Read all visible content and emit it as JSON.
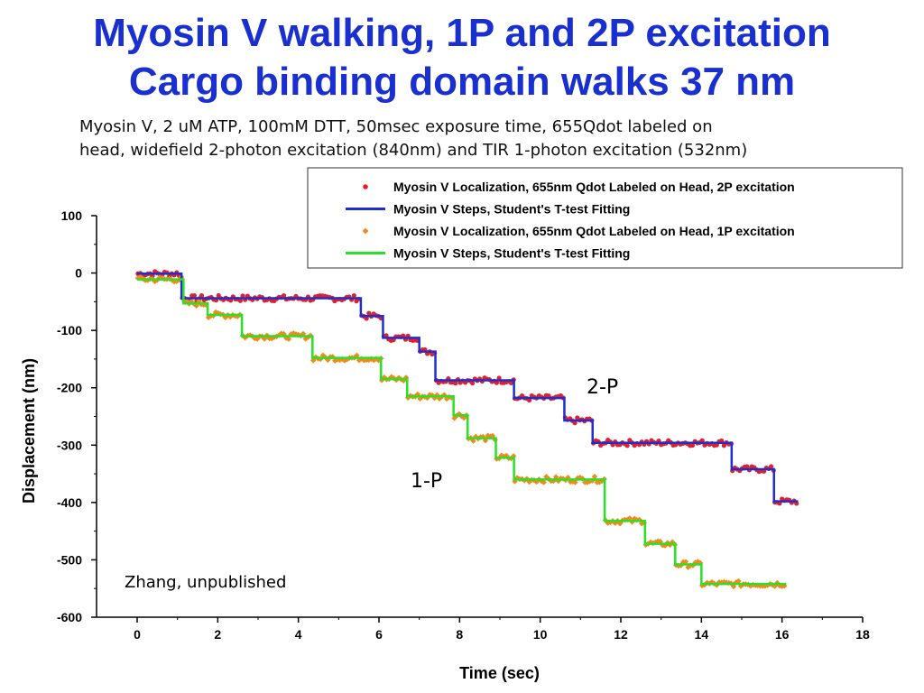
{
  "slide": {
    "title_line1": "Myosin V walking, 1P and 2P excitation",
    "title_line2": "Cargo binding domain walks 37 nm",
    "subtitle_line1": "Myosin V, 2 uM ATP, 100mM DTT, 50msec exposure time, 655Qdot labeled on",
    "subtitle_line2": "head, widefield 2-photon excitation (840nm) and TIR 1-photon excitation (532nm)",
    "title_color": "#1a2fcf"
  },
  "chart_data": {
    "type": "scatter",
    "xlabel": "Time (sec)",
    "ylabel": "Displacement (nm)",
    "xlim": [
      0,
      18
    ],
    "ylim": [
      -600,
      100
    ],
    "xticks": [
      "0",
      "2",
      "4",
      "6",
      "8",
      "10",
      "12",
      "14",
      "16",
      "18"
    ],
    "yticks": [
      "100",
      "0",
      "-100",
      "-200",
      "-300",
      "-400",
      "-500",
      "-600"
    ],
    "legend_position": "top-right",
    "annotations": [
      "2-P",
      "1-P"
    ],
    "credit": "Zhang, unpublished",
    "series": [
      {
        "name": "Myosin V Localization, 655nm Qdot Labeled on Head, 2P excitation",
        "kind": "points",
        "marker": "circle",
        "color": "#e0202a",
        "steps": [
          {
            "x0": 0.0,
            "x1": 1.1,
            "y": -1
          },
          {
            "x0": 1.1,
            "x1": 5.55,
            "y": -44
          },
          {
            "x0": 5.55,
            "x1": 6.1,
            "y": -75
          },
          {
            "x0": 6.1,
            "x1": 7.0,
            "y": -113
          },
          {
            "x0": 7.0,
            "x1": 7.4,
            "y": -137
          },
          {
            "x0": 7.4,
            "x1": 9.35,
            "y": -187
          },
          {
            "x0": 9.35,
            "x1": 10.6,
            "y": -218
          },
          {
            "x0": 10.6,
            "x1": 11.3,
            "y": -257
          },
          {
            "x0": 11.3,
            "x1": 14.75,
            "y": -296
          },
          {
            "x0": 14.75,
            "x1": 15.8,
            "y": -342
          },
          {
            "x0": 15.8,
            "x1": 16.4,
            "y": -398
          }
        ],
        "dx": 0.06,
        "noise": 5
      },
      {
        "name": "Myosin V Steps, Student's T-test Fitting",
        "kind": "line",
        "color": "#1f2fcf",
        "width": 2.5,
        "x": [
          0.0,
          1.1,
          1.1,
          5.55,
          5.55,
          6.1,
          6.1,
          7.0,
          7.0,
          7.4,
          7.4,
          9.35,
          9.35,
          10.6,
          10.6,
          11.3,
          11.3,
          14.75,
          14.75,
          15.8,
          15.8,
          16.4
        ],
        "y": [
          -1,
          -1,
          -44,
          -44,
          -75,
          -75,
          -113,
          -113,
          -137,
          -137,
          -187,
          -187,
          -218,
          -218,
          -257,
          -257,
          -296,
          -296,
          -342,
          -342,
          -398,
          -398
        ]
      },
      {
        "name": "Myosin V Localization, 655nm Qdot Labeled on Head, 1P excitation",
        "kind": "points",
        "marker": "diamond",
        "color": "#f08a1c",
        "steps": [
          {
            "x0": 0.0,
            "x1": 1.15,
            "y": -11
          },
          {
            "x0": 1.15,
            "x1": 1.75,
            "y": -53
          },
          {
            "x0": 1.75,
            "x1": 2.6,
            "y": -73
          },
          {
            "x0": 2.6,
            "x1": 4.35,
            "y": -110
          },
          {
            "x0": 4.35,
            "x1": 6.05,
            "y": -148
          },
          {
            "x0": 6.05,
            "x1": 6.7,
            "y": -185
          },
          {
            "x0": 6.7,
            "x1": 7.85,
            "y": -215
          },
          {
            "x0": 7.85,
            "x1": 8.2,
            "y": -248
          },
          {
            "x0": 8.2,
            "x1": 8.9,
            "y": -288
          },
          {
            "x0": 8.9,
            "x1": 9.35,
            "y": -322
          },
          {
            "x0": 9.35,
            "x1": 11.6,
            "y": -360
          },
          {
            "x0": 11.6,
            "x1": 12.6,
            "y": -432
          },
          {
            "x0": 12.6,
            "x1": 13.35,
            "y": -472
          },
          {
            "x0": 13.35,
            "x1": 14.0,
            "y": -508
          },
          {
            "x0": 14.0,
            "x1": 16.1,
            "y": -542
          }
        ],
        "dx": 0.06,
        "noise": 5
      },
      {
        "name": "Myosin V Steps, Student's T-test Fitting",
        "kind": "line",
        "color": "#27e227",
        "width": 2.5,
        "x": [
          0.0,
          1.15,
          1.15,
          1.75,
          1.75,
          2.6,
          2.6,
          4.35,
          4.35,
          6.05,
          6.05,
          6.7,
          6.7,
          7.85,
          7.85,
          8.2,
          8.2,
          8.9,
          8.9,
          9.35,
          9.35,
          11.6,
          11.6,
          12.6,
          12.6,
          13.35,
          13.35,
          14.0,
          14.0,
          16.1
        ],
        "y": [
          -11,
          -11,
          -53,
          -53,
          -73,
          -73,
          -110,
          -110,
          -148,
          -148,
          -185,
          -185,
          -215,
          -215,
          -248,
          -248,
          -288,
          -288,
          -322,
          -322,
          -360,
          -360,
          -432,
          -432,
          -472,
          -472,
          -508,
          -508,
          -542,
          -542
        ]
      }
    ]
  }
}
